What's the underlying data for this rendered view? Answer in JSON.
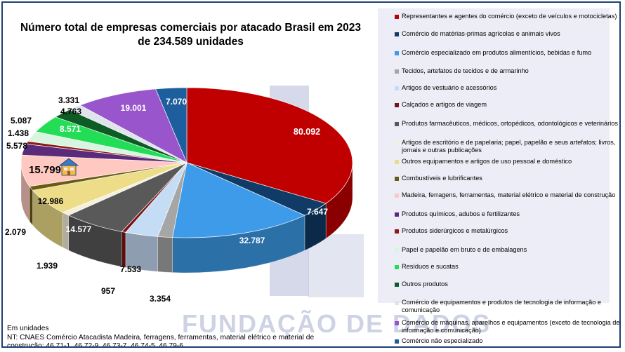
{
  "title_lines": [
    "Número total de empresas comerciais por atacado Brasil em 2023",
    "de 234.589 unidades"
  ],
  "watermark": "FUNDAÇÃO DE DADOS",
  "notes": {
    "units": "Em unidades",
    "nt_line1": "NT: CNAES Comércio Atacadista Madeira, ferragens, ferramentas, material elétrico e material de",
    "nt_line2": "construção: 46.71-1, 46.72-9, 46.73-7, 46.74-5, 46.79-6"
  },
  "chart_data": {
    "type": "pie",
    "title": "Número total de empresas comerciais por atacado Brasil em 2023 de 234.589 unidades",
    "total": 234589,
    "slices": [
      {
        "name": "Representantes e agentes do comércio (exceto de veículos e motocicletas)",
        "value": 80092,
        "label": "80.092",
        "color": "#c00000"
      },
      {
        "name": "Comércio de matérias-primas agrícolas e animais vivos",
        "value": 7647,
        "label": "7.647",
        "color": "#0f3b66"
      },
      {
        "name": "Comércio especializado em produtos alimentícios, bebidas e fumo",
        "value": 32787,
        "label": "32.787",
        "color": "#3d9be9"
      },
      {
        "name": "Tecidos, artefatos de tecidos e de armarinho",
        "value": 3354,
        "label": "3.354",
        "color": "#a6a6a6"
      },
      {
        "name": "Artigos de vestuário e acessórios",
        "value": 7533,
        "label": "7.533",
        "color": "#c5dcf5"
      },
      {
        "name": "Calçados e artigos de viagem",
        "value": 957,
        "label": "957",
        "color": "#7a1414"
      },
      {
        "name": "Produtos farmacêuticos, médicos, ortopédicos, odontológicos e veterinários",
        "value": 14577,
        "label": "14.577",
        "color": "#595959"
      },
      {
        "name": "Artigos de escritório e de papelaria; papel, papelão e seus artefatos; livros, jornais e outras publicações",
        "value": 1939,
        "label": "1.939",
        "color": "#f5f0dc"
      },
      {
        "name": "Outros equipamentos e artigos de uso pessoal e doméstico",
        "value": 12986,
        "label": "12.986",
        "color": "#eedd88"
      },
      {
        "name": "Combustíveis e lubrificantes",
        "value": 2079,
        "label": "2.079",
        "color": "#6b5a12"
      },
      {
        "name": "Madeira, ferragens, ferramentas, material elétrico e material de construção",
        "value": 15799,
        "label": "15.799",
        "color": "#ffc8c0"
      },
      {
        "name": "Produtos químicos, adubos e fertilizantes",
        "value": 5578,
        "label": "5.578",
        "color": "#5b2a78"
      },
      {
        "name": "Produtos siderúrgicos e metalúrgicos",
        "value": 1438,
        "label": "1.438",
        "color": "#8b1a1a"
      },
      {
        "name": "Papel e papelão em bruto e de embalagens",
        "value": 5087,
        "label": "5.087",
        "color": "#d8f5e0"
      },
      {
        "name": "Resíduos e sucatas",
        "value": 8571,
        "label": "8.571",
        "color": "#22dd55"
      },
      {
        "name": "Outros produtos",
        "value": 4763,
        "label": "4.763",
        "color": "#0d5c25"
      },
      {
        "name": "Comércio de equipamentos e produtos de tecnologia de informação e comunicação",
        "value": 3331,
        "label": "3.331",
        "color": "#dfe4ec"
      },
      {
        "name": "Comércio de máquinas, aparelhos e equipamentos (exceto de tecnologia de informação e comunicação)",
        "value": 19001,
        "label": "19.001",
        "color": "#9955cc"
      },
      {
        "name": "Comércio não especializado",
        "value": 7070,
        "label": "7.070",
        "color": "#1d5e9e"
      }
    ],
    "legend_placement": "right"
  }
}
